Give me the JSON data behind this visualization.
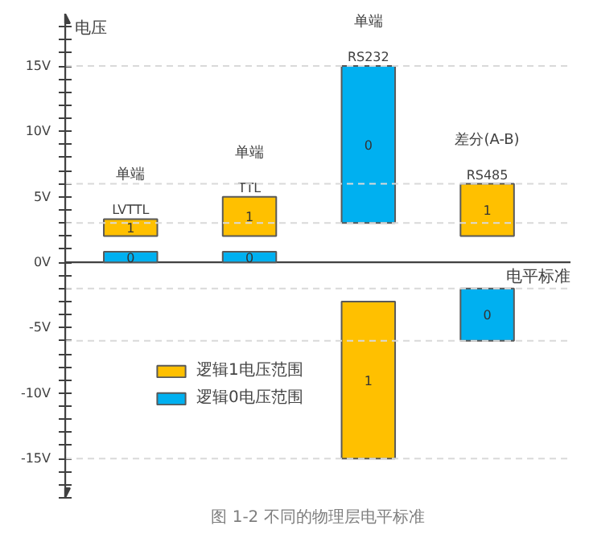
{
  "chart_data": {
    "type": "bar",
    "xlabel": "电平标准",
    "ylabel": "电压",
    "categories": [
      "LVTTL",
      "TTL",
      "RS232",
      "RS485"
    ],
    "series": [
      {
        "name": "逻辑1电压范围",
        "color": "#ffc000",
        "base": [
          2,
          2,
          -15,
          2
        ],
        "values": [
          1.3,
          3,
          12,
          4
        ]
      },
      {
        "name": "逻辑0电压范围",
        "color": "#00b0f0",
        "base": [
          0,
          0,
          3,
          -6
        ],
        "values": [
          0.8,
          0.8,
          12,
          4
        ]
      }
    ],
    "ylim": [
      -18,
      19
    ],
    "yticks": [
      {
        "value": -18,
        "label": null
      },
      {
        "value": -17,
        "label": null
      },
      {
        "value": -16,
        "label": null
      },
      {
        "value": -15,
        "label": "-15V"
      },
      {
        "value": -14,
        "label": null
      },
      {
        "value": -13,
        "label": null
      },
      {
        "value": -12,
        "label": null
      },
      {
        "value": -11,
        "label": null
      },
      {
        "value": -10,
        "label": "-10V"
      },
      {
        "value": -9,
        "label": null
      },
      {
        "value": -8,
        "label": null
      },
      {
        "value": -7,
        "label": null
      },
      {
        "value": -6,
        "label": null
      },
      {
        "value": -5,
        "label": "-5V"
      },
      {
        "value": -4,
        "label": null
      },
      {
        "value": -3,
        "label": null
      },
      {
        "value": -2,
        "label": null
      },
      {
        "value": -1,
        "label": null
      },
      {
        "value": 0,
        "label": "0V"
      },
      {
        "value": 1,
        "label": null
      },
      {
        "value": 2,
        "label": null
      },
      {
        "value": 3,
        "label": null
      },
      {
        "value": 4,
        "label": null
      },
      {
        "value": 5,
        "label": "5V"
      },
      {
        "value": 6,
        "label": null
      },
      {
        "value": 7,
        "label": null
      },
      {
        "value": 8,
        "label": null
      },
      {
        "value": 9,
        "label": null
      },
      {
        "value": 10,
        "label": "10V"
      },
      {
        "value": 11,
        "label": null
      },
      {
        "value": 12,
        "label": null
      },
      {
        "value": 13,
        "label": null
      },
      {
        "value": 14,
        "label": null
      },
      {
        "value": 15,
        "label": "15V"
      },
      {
        "value": 16,
        "label": null
      },
      {
        "value": 17,
        "label": null
      },
      {
        "value": 18,
        "label": null
      }
    ],
    "ref_lines": [
      {
        "axis": "y",
        "value": 15,
        "label": null,
        "color": "#d9d9d9",
        "line_style": "dashed"
      },
      {
        "axis": "y",
        "value": 6,
        "label": null,
        "color": "#d9d9d9",
        "line_style": "dashed"
      },
      {
        "axis": "y",
        "value": 3,
        "label": null,
        "color": "#d9d9d9",
        "line_style": "dashed"
      },
      {
        "axis": "y",
        "value": -2,
        "label": null,
        "color": "#d9d9d9",
        "line_style": "dashed"
      },
      {
        "axis": "y",
        "value": -6,
        "label": null,
        "color": "#d9d9d9",
        "line_style": "dashed"
      },
      {
        "axis": "y",
        "value": -15,
        "label": null,
        "color": "#d9d9d9",
        "line_style": "dashed"
      }
    ],
    "annotations": [
      "单端",
      "单端",
      "单端",
      "差分(A-B)",
      "1",
      "1",
      "1",
      "1",
      "0",
      "0",
      "0",
      "0",
      "图 1-2 不同的物理层电平标准"
    ],
    "legend": "bottom left",
    "grid": false
  }
}
